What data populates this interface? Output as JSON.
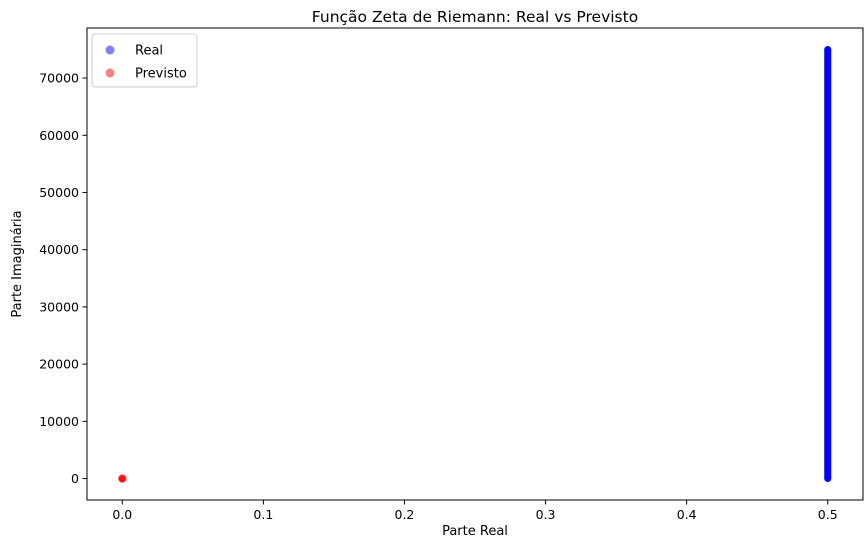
{
  "chart_data": {
    "type": "scatter",
    "title": "Função Zeta de Riemann: Real vs Previsto",
    "xlabel": "Parte Real",
    "ylabel": "Parte Imaginária",
    "xlim": [
      -0.025,
      0.525
    ],
    "ylim": [
      -3750,
      78750
    ],
    "xticks": [
      0.0,
      0.1,
      0.2,
      0.3,
      0.4,
      0.5
    ],
    "xtick_labels": [
      "0.0",
      "0.1",
      "0.2",
      "0.3",
      "0.4",
      "0.5"
    ],
    "yticks": [
      0,
      10000,
      20000,
      30000,
      40000,
      50000,
      60000,
      70000
    ],
    "ytick_labels": [
      "0",
      "10000",
      "20000",
      "30000",
      "40000",
      "50000",
      "60000",
      "70000"
    ],
    "grid": false,
    "legend_position": "upper-left",
    "series": [
      {
        "name": "Real",
        "color": "#0000ff",
        "alpha": 0.5,
        "x_constant": 0.5,
        "y_range": [
          14.13,
          75000
        ]
      },
      {
        "name": "Previsto",
        "color": "#ff0000",
        "alpha": 0.5,
        "points": [
          [
            0.0,
            0.0
          ]
        ]
      }
    ]
  }
}
